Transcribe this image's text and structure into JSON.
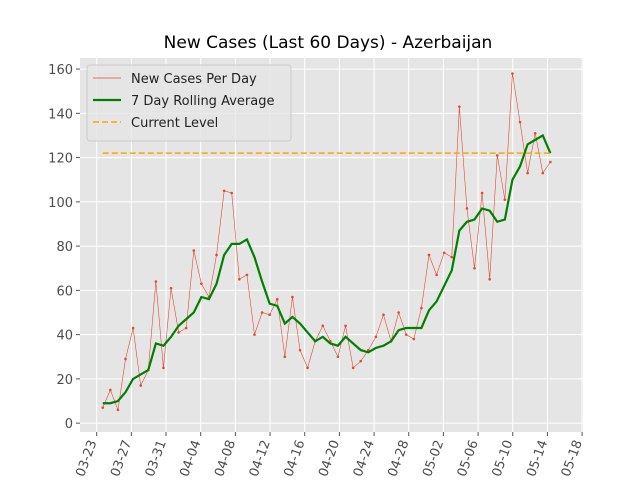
{
  "chart_data": {
    "type": "line",
    "title": "New Cases (Last 60 Days) - Azerbaijan",
    "x": [
      0,
      1,
      2,
      3,
      4,
      5,
      6,
      7,
      8,
      9,
      10,
      11,
      12,
      13,
      14,
      15,
      16,
      17,
      18,
      19,
      20,
      21,
      22,
      23,
      24,
      25,
      26,
      27,
      28,
      29,
      30,
      31,
      32,
      33,
      34,
      35,
      36,
      37,
      38,
      39,
      40,
      41,
      42,
      43,
      44,
      45,
      46,
      47,
      48,
      49,
      50,
      51,
      52,
      53,
      54,
      55,
      56,
      57,
      58,
      59
    ],
    "series": [
      {
        "name": "New Cases Per Day",
        "color": "#e24a33",
        "style": "thin-marker",
        "values": [
          7,
          15,
          6,
          29,
          43,
          17,
          24,
          64,
          25,
          61,
          41,
          43,
          78,
          63,
          57,
          76,
          105,
          104,
          65,
          67,
          40,
          50,
          49,
          56,
          30,
          57,
          33,
          25,
          37,
          44,
          37,
          30,
          44,
          25,
          28,
          33,
          39,
          49,
          37,
          50,
          40,
          38,
          52,
          76,
          67,
          77,
          75,
          143,
          97,
          70,
          104,
          65,
          121,
          101,
          158,
          136,
          113,
          131,
          113,
          118
        ]
      },
      {
        "name": "7 Day Rolling Average",
        "color": "#008000",
        "style": "thick",
        "values": [
          9,
          9,
          10,
          14,
          20,
          22,
          24,
          36,
          35,
          39,
          44,
          47,
          50,
          57,
          56,
          63,
          76,
          81,
          81,
          83,
          75,
          64,
          54,
          53,
          45,
          48,
          45,
          41,
          37,
          39,
          36,
          35,
          39,
          36,
          33,
          32,
          34,
          35,
          37,
          42,
          43,
          43,
          43,
          51,
          55,
          62,
          69,
          87,
          91,
          92,
          97,
          96,
          91,
          92,
          110,
          116,
          126,
          128,
          130,
          122
        ]
      },
      {
        "name": "Current Level",
        "color": "#ffa500",
        "style": "dashed",
        "level": 122
      }
    ],
    "xlim": [
      -3,
      63.3
    ],
    "xticks": [
      {
        "value": -0.8,
        "label": "03-23"
      },
      {
        "value": 3.77,
        "label": "03-27"
      },
      {
        "value": 8.34,
        "label": "03-31"
      },
      {
        "value": 12.91,
        "label": "04-04"
      },
      {
        "value": 17.48,
        "label": "04-08"
      },
      {
        "value": 22.05,
        "label": "04-12"
      },
      {
        "value": 26.62,
        "label": "04-16"
      },
      {
        "value": 31.19,
        "label": "04-20"
      },
      {
        "value": 35.76,
        "label": "04-24"
      },
      {
        "value": 40.33,
        "label": "04-28"
      },
      {
        "value": 44.9,
        "label": "05-02"
      },
      {
        "value": 49.47,
        "label": "05-06"
      },
      {
        "value": 54.04,
        "label": "05-10"
      },
      {
        "value": 58.61,
        "label": "05-14"
      },
      {
        "value": 63.18,
        "label": "05-18"
      }
    ],
    "ylim": [
      -4,
      165
    ],
    "yticks": [
      0,
      20,
      40,
      60,
      80,
      100,
      120,
      140,
      160
    ],
    "grid": true,
    "legend": "upper-left"
  }
}
